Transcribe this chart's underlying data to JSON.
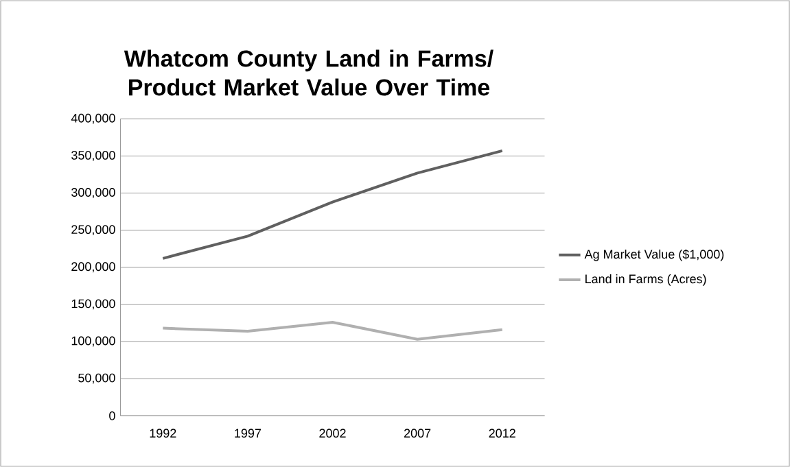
{
  "chart_data": {
    "type": "line",
    "title": "Whatcom County Land in Farms/ Product Market Value Over Time",
    "categories": [
      "1992",
      "1997",
      "2002",
      "2007",
      "2012"
    ],
    "series": [
      {
        "name": "Ag Market Value ($1,000)",
        "color": "#606060",
        "values": [
          212000,
          242000,
          288000,
          327000,
          357000
        ]
      },
      {
        "name": "Land in Farms (Acres)",
        "color": "#b0b0b0",
        "values": [
          118000,
          114000,
          126000,
          103000,
          116000
        ]
      }
    ],
    "ylim": [
      0,
      400000
    ],
    "yticks": [
      {
        "value": 0,
        "label": "0"
      },
      {
        "value": 50000,
        "label": "50,000"
      },
      {
        "value": 100000,
        "label": "100,000"
      },
      {
        "value": 150000,
        "label": "150,000"
      },
      {
        "value": 200000,
        "label": "200,000"
      },
      {
        "value": 250000,
        "label": "250,000"
      },
      {
        "value": 300000,
        "label": "300,000"
      },
      {
        "value": 350000,
        "label": "350,000"
      },
      {
        "value": 400000,
        "label": "400,000"
      }
    ],
    "grid": "y",
    "legend": "right",
    "marker": "none",
    "line_style": "solid"
  }
}
